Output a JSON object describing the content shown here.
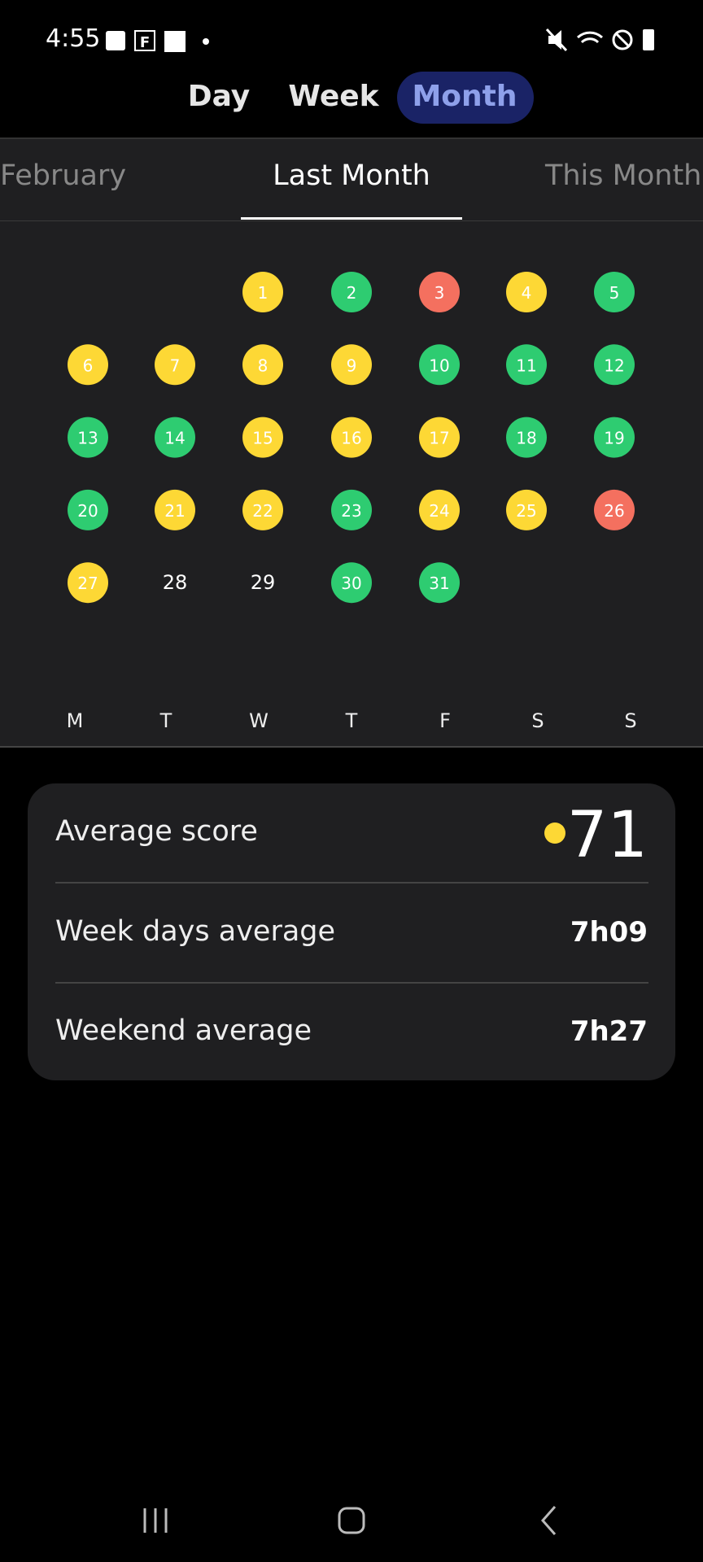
{
  "status_bar": {
    "time": "4:55"
  },
  "period_tabs": [
    "Day",
    "Week",
    "Month"
  ],
  "month_tabs": [
    "February",
    "Last Month",
    "This Month"
  ],
  "calendar": {
    "weeks": [
      [
        null,
        null,
        {
          "day": "1",
          "color": "#fdd835"
        },
        {
          "day": "2",
          "color": "#2ecc71"
        },
        {
          "day": "3",
          "color": "#f4705f"
        },
        {
          "day": "4",
          "color": "#fdd835"
        },
        {
          "day": "5",
          "color": "#2ecc71"
        }
      ],
      [
        {
          "day": "6",
          "color": "#fdd835"
        },
        {
          "day": "7",
          "color": "#fdd835"
        },
        {
          "day": "8",
          "color": "#fdd835"
        },
        {
          "day": "9",
          "color": "#fdd835"
        },
        {
          "day": "10",
          "color": "#2ecc71"
        },
        {
          "day": "11",
          "color": "#2ecc71"
        },
        {
          "day": "12",
          "color": "#2ecc71"
        }
      ],
      [
        {
          "day": "13",
          "color": "#2ecc71"
        },
        {
          "day": "14",
          "color": "#2ecc71"
        },
        {
          "day": "15",
          "color": "#fdd835"
        },
        {
          "day": "16",
          "color": "#fdd835"
        },
        {
          "day": "17",
          "color": "#fdd835"
        },
        {
          "day": "18",
          "color": "#2ecc71"
        },
        {
          "day": "19",
          "color": "#2ecc71"
        }
      ],
      [
        {
          "day": "20",
          "color": "#2ecc71"
        },
        {
          "day": "21",
          "color": "#fdd835"
        },
        {
          "day": "22",
          "color": "#fdd835"
        },
        {
          "day": "23",
          "color": "#2ecc71"
        },
        {
          "day": "24",
          "color": "#fdd835"
        },
        {
          "day": "25",
          "color": "#fdd835"
        },
        {
          "day": "26",
          "color": "#f4705f"
        }
      ],
      [
        {
          "day": "27",
          "color": "#fdd835"
        },
        {
          "day": "28",
          "color": null
        },
        {
          "day": "29",
          "color": null
        },
        {
          "day": "30",
          "color": "#2ecc71"
        },
        {
          "day": "31",
          "color": "#2ecc71"
        },
        null,
        null
      ]
    ],
    "weekdays": [
      "M",
      "T",
      "W",
      "T",
      "F",
      "S",
      "S"
    ]
  },
  "summary": [
    {
      "label": "Average score",
      "value": "71"
    },
    {
      "label": "Week days average",
      "value": "7h09"
    },
    {
      "label": "Weekend average",
      "value": "7h27"
    }
  ]
}
